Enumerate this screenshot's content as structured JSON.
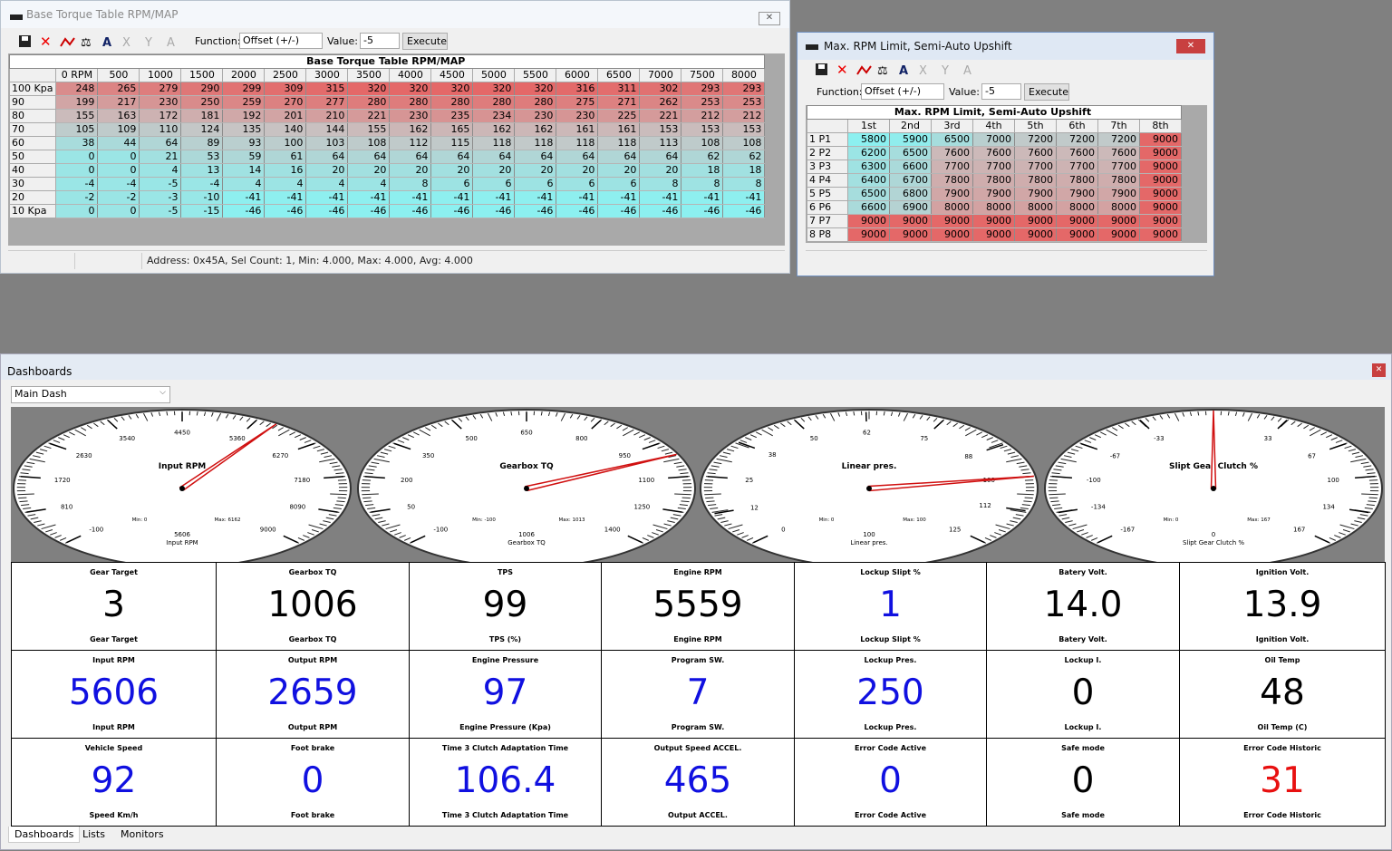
{
  "torque_window": {
    "title": "Base Torque Table RPM/MAP",
    "function_label": "Function:",
    "function_value": "Offset (+/-)",
    "value_label": "Value:",
    "value": "-5",
    "execute": "Execute",
    "table_title": "Base Torque Table RPM/MAP",
    "columns": [
      "0 RPM",
      "500",
      "1000",
      "1500",
      "2000",
      "2500",
      "3000",
      "3500",
      "4000",
      "4500",
      "5000",
      "5500",
      "6000",
      "6500",
      "7000",
      "7500",
      "8000"
    ],
    "rows": [
      {
        "label": "100 Kpa",
        "values": [
          248,
          265,
          279,
          290,
          299,
          309,
          315,
          320,
          320,
          320,
          320,
          320,
          316,
          311,
          302,
          293,
          293
        ]
      },
      {
        "label": "90",
        "values": [
          199,
          217,
          230,
          250,
          259,
          270,
          277,
          280,
          280,
          280,
          280,
          280,
          275,
          271,
          262,
          253,
          253
        ]
      },
      {
        "label": "80",
        "values": [
          155,
          163,
          172,
          181,
          192,
          201,
          210,
          221,
          230,
          235,
          234,
          230,
          230,
          225,
          221,
          212,
          212
        ]
      },
      {
        "label": "70",
        "values": [
          105,
          109,
          110,
          124,
          135,
          140,
          144,
          155,
          162,
          165,
          162,
          162,
          161,
          161,
          153,
          153,
          153
        ]
      },
      {
        "label": "60",
        "values": [
          38,
          44,
          64,
          89,
          93,
          100,
          103,
          108,
          112,
          115,
          118,
          118,
          118,
          118,
          113,
          108,
          108
        ]
      },
      {
        "label": "50",
        "values": [
          0,
          0,
          21,
          53,
          59,
          61,
          64,
          64,
          64,
          64,
          64,
          64,
          64,
          64,
          64,
          62,
          62
        ]
      },
      {
        "label": "40",
        "values": [
          0,
          0,
          4,
          13,
          14,
          16,
          20,
          20,
          20,
          20,
          20,
          20,
          20,
          20,
          20,
          18,
          18
        ]
      },
      {
        "label": "30",
        "values": [
          -4,
          -4,
          -5,
          -4,
          4,
          4,
          4,
          4,
          8,
          6,
          6,
          6,
          6,
          6,
          8,
          8,
          8
        ]
      },
      {
        "label": "20",
        "values": [
          -2,
          -2,
          -3,
          -10,
          -41,
          -41,
          -41,
          -41,
          -41,
          -41,
          -41,
          -41,
          -41,
          -41,
          -41,
          -41,
          -41
        ]
      },
      {
        "label": "10 Kpa",
        "values": [
          0,
          0,
          -5,
          -15,
          -46,
          -46,
          -46,
          -46,
          -46,
          -46,
          -46,
          -46,
          -46,
          -46,
          -46,
          -46,
          -46
        ]
      }
    ],
    "status": "Address: 0x45A, Sel Count: 1, Min: 4.000, Max: 4.000, Avg: 4.000"
  },
  "rpm_window": {
    "title": "Max. RPM Limit, Semi-Auto Upshift",
    "function_label": "Function:",
    "function_value": "Offset (+/-)",
    "value_label": "Value:",
    "value": "-5",
    "execute": "Execute",
    "table_title": "Max. RPM Limit, Semi-Auto Upshift",
    "columns": [
      "1st",
      "2nd",
      "3rd",
      "4th",
      "5th",
      "6th",
      "7th",
      "8th"
    ],
    "rows": [
      {
        "label": "1 P1",
        "values": [
          5800,
          5900,
          6500,
          7000,
          7200,
          7200,
          7200,
          9000
        ]
      },
      {
        "label": "2 P2",
        "values": [
          6200,
          6500,
          7600,
          7600,
          7600,
          7600,
          7600,
          9000
        ]
      },
      {
        "label": "3 P3",
        "values": [
          6300,
          6600,
          7700,
          7700,
          7700,
          7700,
          7700,
          9000
        ]
      },
      {
        "label": "4 P4",
        "values": [
          6400,
          6700,
          7800,
          7800,
          7800,
          7800,
          7800,
          9000
        ]
      },
      {
        "label": "5 P5",
        "values": [
          6500,
          6800,
          7900,
          7900,
          7900,
          7900,
          7900,
          9000
        ]
      },
      {
        "label": "6 P6",
        "values": [
          6600,
          6900,
          8000,
          8000,
          8000,
          8000,
          8000,
          9000
        ]
      },
      {
        "label": "7 P7",
        "values": [
          9000,
          9000,
          9000,
          9000,
          9000,
          9000,
          9000,
          9000
        ]
      },
      {
        "label": "8 P8",
        "values": [
          9000,
          9000,
          9000,
          9000,
          9000,
          9000,
          9000,
          9000
        ]
      }
    ]
  },
  "dashboards": {
    "title": "Dashboards",
    "selector": "Main Dash",
    "gauges": [
      {
        "title": "Input RPM",
        "ticks": [
          -100,
          810,
          1720,
          2630,
          3540,
          4450,
          5360,
          6270,
          7180,
          8090,
          9000
        ],
        "min": "Min: 0",
        "max": "Max: 6162",
        "value": 5606,
        "label": "Input RPM"
      },
      {
        "title": "Gearbox TQ",
        "ticks": [
          -100,
          50,
          200,
          350,
          500,
          650,
          800,
          950,
          1100,
          1250,
          1400
        ],
        "min": "Min: -100",
        "max": "Max: 1013",
        "value": 1006,
        "label": "Gearbox TQ"
      },
      {
        "title": "Linear pres.",
        "ticks": [
          0,
          12,
          25,
          38,
          50,
          62,
          75,
          88,
          100,
          112,
          125
        ],
        "min": "Min: 0",
        "max": "Max: 100",
        "value": 100,
        "label": "Linear pres."
      },
      {
        "title": "Slipt Gear Clutch %",
        "ticks": [
          -167,
          -134,
          -100,
          -67,
          -33,
          33,
          67,
          100,
          134,
          167
        ],
        "min": "Min: 0",
        "max": "Max: 167",
        "value": 0,
        "label": "Slipt Gear Clutch %"
      }
    ],
    "tiles": [
      {
        "title": "Gear Target",
        "value": "3",
        "caption": "Gear Target",
        "color": "#000000"
      },
      {
        "title": "Gearbox TQ",
        "value": "1006",
        "caption": "Gearbox TQ",
        "color": "#000000"
      },
      {
        "title": "TPS",
        "value": "99",
        "caption": "TPS (%)",
        "color": "#000000"
      },
      {
        "title": "Engine RPM",
        "value": "5559",
        "caption": "Engine RPM",
        "color": "#000000"
      },
      {
        "title": "Lockup Slipt %",
        "value": "1",
        "caption": "Lockup Slipt %",
        "color": "#1010e0"
      },
      {
        "title": "Batery Volt.",
        "value": "14.0",
        "caption": "Batery Volt.",
        "color": "#000000"
      },
      {
        "title": "Ignition Volt.",
        "value": "13.9",
        "caption": "Ignition Volt.",
        "color": "#000000"
      },
      {
        "title": "Input RPM",
        "value": "5606",
        "caption": "Input RPM",
        "color": "#1010e0"
      },
      {
        "title": "Output RPM",
        "value": "2659",
        "caption": "Output RPM",
        "color": "#1010e0"
      },
      {
        "title": "Engine Pressure",
        "value": "97",
        "caption": "Engine Pressure (Kpa)",
        "color": "#1010e0"
      },
      {
        "title": "Program  SW.",
        "value": "7",
        "caption": "Program SW.",
        "color": "#1010e0"
      },
      {
        "title": "Lockup Pres.",
        "value": "250",
        "caption": "Lockup Pres.",
        "color": "#1010e0"
      },
      {
        "title": "Lockup I.",
        "value": "0",
        "caption": "Lockup I.",
        "color": "#000000"
      },
      {
        "title": "Oil Temp",
        "value": "48",
        "caption": "Oil Temp (C)",
        "color": "#000000"
      },
      {
        "title": "Vehicle Speed",
        "value": "92",
        "caption": "Speed Km/h",
        "color": "#1010e0"
      },
      {
        "title": "Foot brake",
        "value": "0",
        "caption": "Foot brake",
        "color": "#1010e0"
      },
      {
        "title": "Time 3 Clutch Adaptation Time",
        "value": "106.4",
        "caption": "Time 3 Clutch Adaptation Time",
        "color": "#1010e0"
      },
      {
        "title": "Output Speed ACCEL.",
        "value": "465",
        "caption": "Output ACCEL.",
        "color": "#1010e0"
      },
      {
        "title": "Error Code Active",
        "value": "0",
        "caption": "Error Code Active",
        "color": "#1010e0"
      },
      {
        "title": "Safe mode",
        "value": "0",
        "caption": "Safe mode",
        "color": "#000000"
      },
      {
        "title": "Error Code Historic",
        "value": "31",
        "caption": "Error Code Historic",
        "color": "#e81010"
      }
    ],
    "tabs": [
      "Dashboards",
      "Lists",
      "Monitors"
    ]
  }
}
